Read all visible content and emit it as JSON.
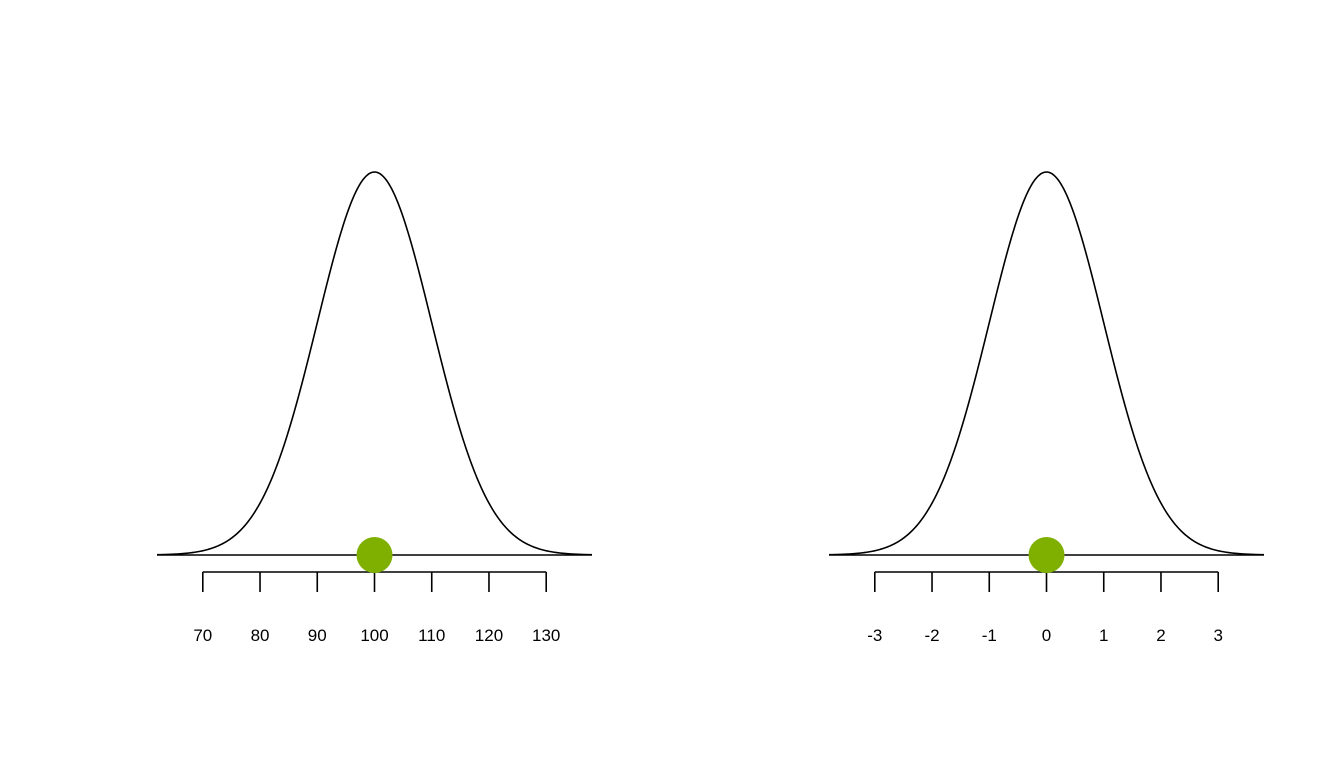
{
  "chart_data": [
    {
      "type": "line",
      "title": "",
      "xlabel": "",
      "ylabel": "",
      "distribution": {
        "mean": 100,
        "sd": 10
      },
      "xlim": [
        62,
        138
      ],
      "ticks": [
        70,
        80,
        90,
        100,
        110,
        120,
        130
      ],
      "tick_labels": [
        "70",
        "80",
        "90",
        "100",
        "110",
        "120",
        "130"
      ],
      "point": {
        "x": 100,
        "y": 0
      },
      "curve_color": "#000000",
      "point_color": "#7fb000"
    },
    {
      "type": "line",
      "title": "",
      "xlabel": "",
      "ylabel": "",
      "distribution": {
        "mean": 0,
        "sd": 1
      },
      "xlim": [
        -3.8,
        3.8
      ],
      "ticks": [
        -3,
        -2,
        -1,
        0,
        1,
        2,
        3
      ],
      "tick_labels": [
        "-3",
        "-2",
        "-1",
        "0",
        "1",
        "2",
        "3"
      ],
      "point": {
        "x": 0,
        "y": 0
      },
      "curve_color": "#000000",
      "point_color": "#7fb000"
    }
  ]
}
